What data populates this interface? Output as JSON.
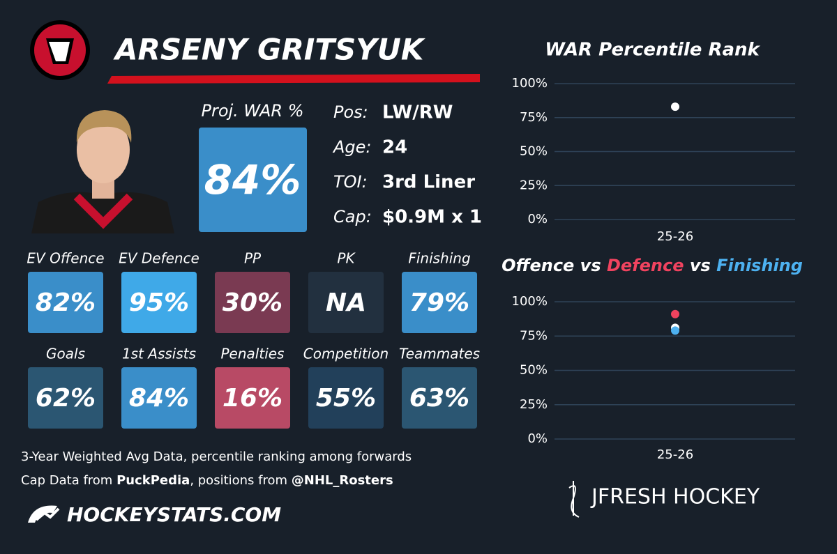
{
  "header": {
    "name": "ARSENY GRITSYUK"
  },
  "summary": {
    "label": "Proj. WAR %",
    "value": "84%",
    "color": "#3a8ec9"
  },
  "info": [
    {
      "label": "Pos:",
      "value": "LW/RW"
    },
    {
      "label": "Age:",
      "value": "24"
    },
    {
      "label": "TOI:",
      "value": "3rd Liner"
    },
    {
      "label": "Cap:",
      "value": "$0.9M x 1"
    }
  ],
  "tiles": [
    {
      "label": "EV Offence",
      "value": "82%",
      "color": "#3a8ec9"
    },
    {
      "label": "EV Defence",
      "value": "95%",
      "color": "#3fa9e8"
    },
    {
      "label": "PP",
      "value": "30%",
      "color": "#7a3a52"
    },
    {
      "label": "PK",
      "value": "NA",
      "color": "#22303f"
    },
    {
      "label": "Finishing",
      "value": "79%",
      "color": "#3a8ec9"
    },
    {
      "label": "Goals",
      "value": "62%",
      "color": "#2b5672"
    },
    {
      "label": "1st Assists",
      "value": "84%",
      "color": "#3a8ec9"
    },
    {
      "label": "Penalties",
      "value": "16%",
      "color": "#b84a65"
    },
    {
      "label": "Competition",
      "value": "55%",
      "color": "#22405a"
    },
    {
      "label": "Teammates",
      "value": "63%",
      "color": "#2b5672"
    }
  ],
  "footer": {
    "note": "3-Year Weighted Avg Data, percentile ranking among forwards",
    "credits": [
      {
        "text": "Cap Data from ",
        "bold": false
      },
      {
        "text": "PuckPedia",
        "bold": true
      },
      {
        "text": ", positions from ",
        "bold": false
      },
      {
        "text": "@NHL_Rosters",
        "bold": true
      }
    ],
    "brand": "HOCKEYSTATS.COM",
    "signature": "JFRESH HOCKEY"
  },
  "chart_data": [
    {
      "type": "dot",
      "title": "WAR Percentile Rank",
      "categories": [
        "25-26"
      ],
      "series": [
        {
          "name": null,
          "color": "#ffffff",
          "values": [
            83
          ]
        }
      ],
      "ylim": [
        0,
        100
      ],
      "yticks": [
        {
          "value": 0,
          "label": "0%"
        },
        {
          "value": 25,
          "label": "25%"
        },
        {
          "value": 50,
          "label": "50%"
        },
        {
          "value": 75,
          "label": "75%"
        },
        {
          "value": 100,
          "label": "100%"
        }
      ],
      "grid": true
    },
    {
      "type": "dot",
      "connector": "vs",
      "categories": [
        "25-26"
      ],
      "series": [
        {
          "name": "Offence",
          "color": "#ffffff",
          "values": [
            81
          ]
        },
        {
          "name": "Defence",
          "color": "#f0435f",
          "values": [
            91
          ]
        },
        {
          "name": "Finishing",
          "color": "#4db1f0",
          "values": [
            79
          ]
        }
      ],
      "ylim": [
        0,
        100
      ],
      "yticks": [
        {
          "value": 0,
          "label": "0%"
        },
        {
          "value": 25,
          "label": "25%"
        },
        {
          "value": 50,
          "label": "50%"
        },
        {
          "value": 75,
          "label": "75%"
        },
        {
          "value": 100,
          "label": "100%"
        }
      ],
      "grid": true
    }
  ]
}
